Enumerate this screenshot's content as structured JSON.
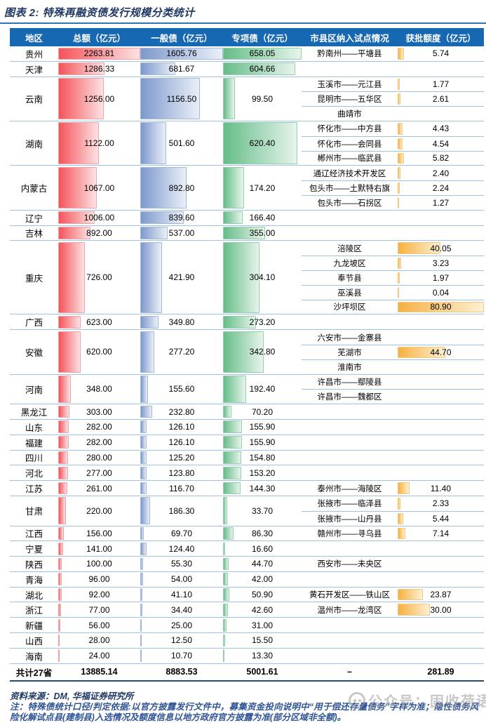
{
  "title": "图表 2: 特殊再融资债发行规模分类统计",
  "header": {
    "region": "地区",
    "total": "总额（亿元）",
    "general": "一般债（亿元）",
    "special": "专项债（亿元）",
    "pilot": "市县区纳入试点情况",
    "quota": "获批额度（亿元）"
  },
  "chart_data": {
    "type": "table",
    "title": "特殊再融资债发行规模分类统计",
    "columns": [
      "地区",
      "总额（亿元）",
      "一般债（亿元）",
      "专项债（亿元）",
      "市县区纳入试点情况",
      "获批额度（亿元）"
    ],
    "max_scale": {
      "total": 2263.81,
      "general": 1605.76,
      "special": 658.05,
      "quota": 80.9
    },
    "rows": [
      {
        "name": "贵州",
        "total": "2263.81",
        "general": "1605.76",
        "special": "658.05",
        "pilots": [
          {
            "area": "黔南州——平塘县",
            "quota": "5.74"
          }
        ]
      },
      {
        "name": "天津",
        "total": "1286.33",
        "general": "681.67",
        "special": "604.66",
        "pilots": []
      },
      {
        "name": "云南",
        "total": "1256.00",
        "general": "1156.50",
        "special": "99.50",
        "pilots": [
          {
            "area": "玉溪市——元江县",
            "quota": "1.77"
          },
          {
            "area": "昆明市——五华区",
            "quota": "2.61"
          },
          {
            "area": "曲靖市",
            "quota": ""
          }
        ]
      },
      {
        "name": "湖南",
        "total": "1122.00",
        "general": "501.60",
        "special": "620.40",
        "pilots": [
          {
            "area": "怀化市——中方县",
            "quota": "4.43"
          },
          {
            "area": "怀化市——会同县",
            "quota": "4.54"
          },
          {
            "area": "郴州市——临武县",
            "quota": "5.82"
          }
        ]
      },
      {
        "name": "内蒙古",
        "total": "1067.00",
        "general": "892.80",
        "special": "174.20",
        "pilots": [
          {
            "area": "通辽经济技术开发区",
            "quota": "2.40"
          },
          {
            "area": "包头市——土默特右旗",
            "quota": "2.24"
          },
          {
            "area": "包头市——石拐区",
            "quota": "1.27"
          }
        ]
      },
      {
        "name": "辽宁",
        "total": "1006.00",
        "general": "839.60",
        "special": "166.40",
        "pilots": []
      },
      {
        "name": "吉林",
        "total": "892.00",
        "general": "537.00",
        "special": "355.00",
        "pilots": []
      },
      {
        "name": "重庆",
        "total": "726.00",
        "general": "421.90",
        "special": "304.10",
        "pilots": [
          {
            "area": "涪陵区",
            "quota": "40.05"
          },
          {
            "area": "九龙坡区",
            "quota": "3.23"
          },
          {
            "area": "奉节县",
            "quota": "1.97"
          },
          {
            "area": "巫溪县",
            "quota": "0.04"
          },
          {
            "area": "沙坪坝区",
            "quota": "80.90"
          }
        ]
      },
      {
        "name": "广西",
        "total": "623.00",
        "general": "349.80",
        "special": "273.20",
        "pilots": []
      },
      {
        "name": "安徽",
        "total": "620.00",
        "general": "277.20",
        "special": "342.80",
        "pilots": [
          {
            "area": "六安市——金寨县",
            "quota": ""
          },
          {
            "area": "芜湖市",
            "quota": "44.70"
          },
          {
            "area": "淮南市",
            "quota": ""
          }
        ]
      },
      {
        "name": "河南",
        "total": "348.00",
        "general": "155.60",
        "special": "192.40",
        "pilots": [
          {
            "area": "许昌市——鄢陵县",
            "quota": ""
          },
          {
            "area": "许昌市——魏都区",
            "quota": ""
          }
        ]
      },
      {
        "name": "黑龙江",
        "total": "303.00",
        "general": "232.80",
        "special": "70.20",
        "pilots": []
      },
      {
        "name": "山东",
        "total": "282.00",
        "general": "126.10",
        "special": "155.90",
        "pilots": []
      },
      {
        "name": "福建",
        "total": "282.00",
        "general": "126.10",
        "special": "155.90",
        "pilots": []
      },
      {
        "name": "四川",
        "total": "280.00",
        "general": "125.20",
        "special": "154.80",
        "pilots": []
      },
      {
        "name": "河北",
        "total": "277.00",
        "general": "123.80",
        "special": "153.20",
        "pilots": []
      },
      {
        "name": "江苏",
        "total": "261.00",
        "general": "116.70",
        "special": "144.30",
        "pilots": [
          {
            "area": "泰州市——海陵区",
            "quota": "11.40"
          }
        ]
      },
      {
        "name": "甘肃",
        "total": "220.00",
        "general": "186.30",
        "special": "33.70",
        "pilots": [
          {
            "area": "张掖市——临泽县",
            "quota": "2.33"
          },
          {
            "area": "张掖市——山丹县",
            "quota": "5.44"
          }
        ]
      },
      {
        "name": "江西",
        "total": "156.00",
        "general": "69.70",
        "special": "86.30",
        "pilots": [
          {
            "area": "赣州市——寻乌县",
            "quota": "7.14"
          }
        ]
      },
      {
        "name": "宁夏",
        "total": "141.00",
        "general": "124.40",
        "special": "16.60",
        "pilots": []
      },
      {
        "name": "陕西",
        "total": "100.00",
        "general": "55.30",
        "special": "44.70",
        "pilots": [
          {
            "area": "西安市——未央区",
            "quota": ""
          }
        ]
      },
      {
        "name": "青海",
        "total": "96.00",
        "general": "54.00",
        "special": "42.00",
        "pilots": []
      },
      {
        "name": "湖北",
        "total": "92.00",
        "general": "41.10",
        "special": "50.90",
        "pilots": [
          {
            "area": "黄石开发区——铁山区",
            "quota": "23.87"
          }
        ]
      },
      {
        "name": "浙江",
        "total": "77.00",
        "general": "34.40",
        "special": "42.60",
        "pilots": [
          {
            "area": "温州市——龙湾区",
            "quota": "30.00"
          }
        ]
      },
      {
        "name": "新疆",
        "total": "56.00",
        "general": "25.00",
        "special": "31.00",
        "pilots": []
      },
      {
        "name": "山西",
        "total": "28.00",
        "general": "12.50",
        "special": "15.50",
        "pilots": []
      },
      {
        "name": "海南",
        "total": "24.00",
        "general": "10.70",
        "special": "13.30",
        "pilots": []
      }
    ]
  },
  "total_row": {
    "label": "共计27省",
    "total": "13885.14",
    "general": "8883.53",
    "special": "5001.61",
    "pilot": "–",
    "quota": "281.89"
  },
  "source": "资料来源：DM, 华福证券研究所",
  "note": "注：特殊债统计口径/判定依据:以官方披露发行文件中，募集资金投向说明中“用于偿还存量债务”字样为准；隐性债务风险化解试点县(建制县)入选情况及额度信息以地方政府官方披露为准(部分区域非全额)。",
  "watermark": "公众号：固收荷语",
  "colors": {
    "header_bg": "#1668b3",
    "title": "#1f3864",
    "separator": "#9dc3e6",
    "bar_red": "#f4545a",
    "bar_blue": "#7d99cc",
    "bar_green": "#66bd88",
    "bar_quota": "#f6b142"
  }
}
